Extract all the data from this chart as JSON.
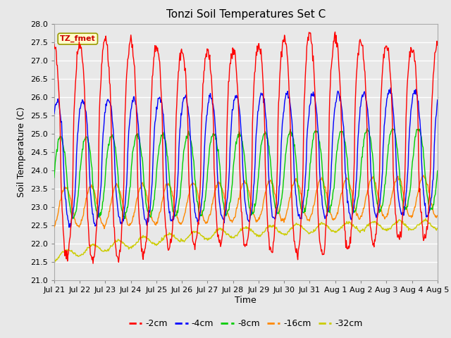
{
  "title": "Tonzi Soil Temperatures Set C",
  "xlabel": "Time",
  "ylabel": "Soil Temperature (C)",
  "ylim": [
    21.0,
    28.0
  ],
  "xtick_labels": [
    "Jul 21",
    "Jul 22",
    "Jul 23",
    "Jul 24",
    "Jul 25",
    "Jul 26",
    "Jul 27",
    "Jul 28",
    "Jul 29",
    "Jul 30",
    "Jul 31",
    "Aug 1",
    "Aug 2",
    "Aug 3",
    "Aug 4",
    "Aug 5"
  ],
  "series": [
    {
      "label": "-2cm",
      "color": "#ff0000"
    },
    {
      "label": "-4cm",
      "color": "#0000ff"
    },
    {
      "label": "-8cm",
      "color": "#00cc00"
    },
    {
      "label": "-16cm",
      "color": "#ff8800"
    },
    {
      "label": "-32cm",
      "color": "#cccc00"
    }
  ],
  "background_color": "#e8e8e8",
  "plot_bg_color": "#e8e8e8",
  "grid_color": "#ffffff",
  "annotation_text": "TZ_fmet",
  "annotation_bg": "#ffffcc",
  "annotation_border": "#999900",
  "duration_days": 15,
  "n_points": 720
}
